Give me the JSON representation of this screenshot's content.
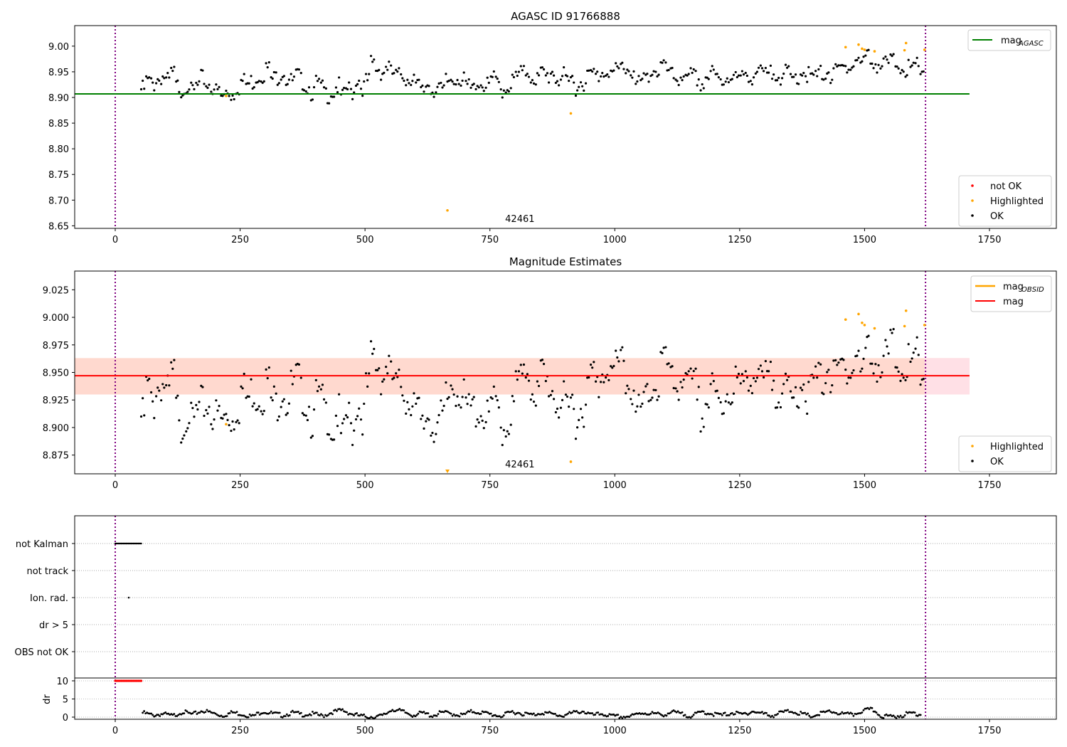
{
  "chart_data": [
    {
      "type": "scatter",
      "title": "AGASC ID 91766888",
      "xlim": [
        -80,
        1760
      ],
      "ylim": [
        8.645,
        9.04
      ],
      "xticks": [
        0,
        250,
        500,
        750,
        1000,
        1250,
        1500,
        1750
      ],
      "yticks": [
        8.65,
        8.7,
        8.75,
        8.8,
        8.85,
        8.9,
        8.95,
        9.0
      ],
      "ytick_fmt": 2,
      "annotation": {
        "text": "42461",
        "x": 810
      },
      "reference_line": {
        "name": "mag_AGASC",
        "label_main": "mag",
        "label_sub": "AGASC",
        "value": 8.907,
        "color": "#008000",
        "x_range": [
          -80,
          1710
        ]
      },
      "vlines": [
        0,
        1622
      ],
      "legend_upper": "top-right",
      "legend_lower": "bottom-right",
      "legend": [
        {
          "label": "not OK",
          "color": "#ff0000"
        },
        {
          "label": "Highlighted",
          "color": "#ffa500"
        },
        {
          "label": "OK",
          "color": "#000000"
        }
      ]
    },
    {
      "type": "scatter",
      "title": "Magnitude Estimates",
      "xlim": [
        -80,
        1760
      ],
      "ylim": [
        8.858,
        9.042
      ],
      "xticks": [
        0,
        250,
        500,
        750,
        1000,
        1250,
        1500,
        1750
      ],
      "yticks": [
        8.875,
        8.9,
        8.925,
        8.95,
        8.975,
        9.0,
        9.025
      ],
      "ytick_fmt": 3,
      "annotation": {
        "text": "42461",
        "x": 810
      },
      "mag": {
        "label": "mag",
        "value": 8.947,
        "band": [
          8.93,
          8.963
        ],
        "color": "#ff0000"
      },
      "mag_obsid": {
        "label_main": "mag",
        "label_sub": "OBSID",
        "color": "#ffa500"
      },
      "vlines": [
        0,
        1622
      ],
      "legend": [
        {
          "label": "Highlighted",
          "color": "#ffa500"
        },
        {
          "label": "OK",
          "color": "#000000"
        }
      ]
    },
    {
      "type": "scatter",
      "title": "",
      "flag_rows": [
        "not Kalman",
        "not track",
        "Ion. rad.",
        "dr > 5",
        "OBS not OK"
      ],
      "flags": {
        "not Kalman": [
          0,
          52
        ],
        "Ion. rad.": [
          27
        ]
      },
      "dr_ylabel": "dr",
      "dr_yticks": [
        0,
        5,
        10
      ],
      "dr_ylim": [
        -0.5,
        11.5
      ],
      "dr_flagged": {
        "value": 10,
        "x_range": [
          0,
          52
        ]
      },
      "dr_x_start": 55,
      "dr_x_step": 20,
      "dr": [
        1.5,
        0.8,
        1.2,
        0.6,
        1.8,
        1.0,
        2.1,
        1.4,
        0.7,
        1.6,
        1.1,
        0.5,
        1.9,
        1.3,
        0.8,
        1.5,
        1.0,
        1.2,
        0.6,
        1.7,
        2.2,
        1.1,
        0.5,
        0.4,
        0.6,
        2.5,
        1.8,
        0.9,
        1.4,
        0.7,
        1.6,
        1.2,
        0.8,
        1.9,
        1.5,
        1.0,
        0.6,
        1.8,
        1.3,
        0.9,
        1.6,
        1.1,
        0.7,
        1.4,
        2.0,
        0.8,
        1.2,
        0.5,
        0.4,
        0.6,
        1.5,
        1.3,
        0.9,
        1.7,
        1.1,
        0.6,
        1.8,
        1.2,
        0.8,
        1.5,
        1.0,
        1.9,
        1.3,
        0.7,
        1.6,
        2.0,
        1.1,
        0.5,
        1.4,
        1.8,
        1.2,
        0.9,
        2.0,
        2.4,
        0.6,
        0.4,
        0.8,
        1.5,
        1.0
      ],
      "xticks": [
        0,
        250,
        500,
        750,
        1000,
        1250,
        1500,
        1750
      ]
    }
  ],
  "series": {
    "ok_x_start": 55,
    "ok_x_step": 10,
    "ok": [
      8.925,
      8.94,
      8.935,
      8.945,
      8.95,
      8.94,
      8.955,
      8.93,
      8.925,
      8.935,
      8.92,
      8.93,
      8.945,
      8.935,
      8.93,
      8.92,
      8.91,
      8.92,
      8.915,
      8.93,
      8.94,
      8.935,
      8.94,
      8.95,
      8.955,
      8.965,
      8.945,
      8.95,
      8.96,
      8.945,
      8.94,
      8.95,
      8.94,
      8.93,
      8.92,
      8.935,
      8.925,
      8.915,
      8.92,
      8.93,
      8.91,
      8.925,
      8.92,
      8.945,
      8.93,
      8.94,
      8.975,
      8.965,
      8.96,
      8.97,
      8.955,
      8.95,
      8.955,
      8.945,
      8.95,
      8.93,
      8.92,
      8.935,
      8.925,
      8.93,
      8.92,
      8.94,
      8.945,
      8.95,
      8.94,
      8.93,
      8.925,
      8.94,
      8.935,
      8.93,
      8.945,
      8.935,
      8.925,
      8.93,
      8.94,
      8.95,
      8.955,
      8.96,
      8.95,
      8.945,
      8.955,
      8.95,
      8.96,
      8.945,
      8.95,
      8.935,
      8.945,
      8.93,
      8.94,
      8.95,
      8.955,
      8.95,
      8.96,
      8.965,
      8.955,
      8.96,
      8.97,
      8.965,
      8.96,
      8.935,
      8.94,
      8.945,
      8.965,
      8.96,
      8.97,
      8.96,
      8.95,
      8.945,
      8.955,
      8.94,
      8.95,
      8.945,
      8.935,
      8.95,
      8.955,
      8.945,
      8.94,
      8.95,
      8.955,
      8.945,
      8.945,
      8.955,
      8.95,
      8.96,
      8.955,
      8.95,
      8.955,
      8.96,
      8.95,
      8.955,
      8.945,
      8.95,
      8.96,
      8.955,
      8.945,
      8.95,
      8.955,
      8.96,
      8.95,
      8.96,
      8.965,
      8.975,
      8.97,
      8.985,
      8.975,
      8.99,
      8.98,
      8.975,
      8.97,
      8.975,
      8.98,
      8.975,
      8.97,
      8.965,
      8.96,
      8.97,
      8.965
    ],
    "highlighted": [
      [
        222,
        8.903
      ],
      [
        665,
        8.68
      ],
      [
        912,
        8.869
      ],
      [
        1462,
        8.998
      ],
      [
        1488,
        9.003
      ],
      [
        1495,
        8.995
      ],
      [
        1500,
        8.993
      ],
      [
        1520,
        8.99
      ],
      [
        1580,
        8.992
      ],
      [
        1583,
        9.006
      ],
      [
        1620,
        8.993
      ]
    ]
  }
}
